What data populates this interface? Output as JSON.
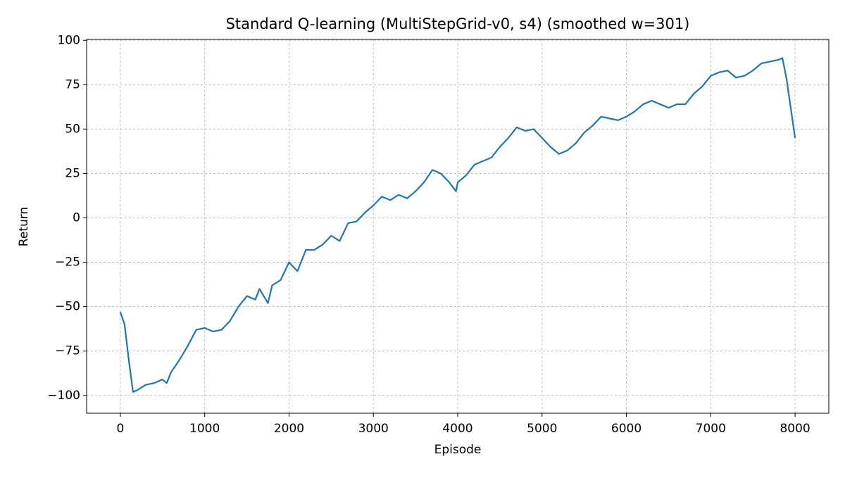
{
  "chart_data": {
    "type": "line",
    "title": "Standard Q-learning (MultiStepGrid-v0, s4) (smoothed w=301)",
    "x_label": "Episode",
    "y_label": "Return",
    "x": [
      0,
      50,
      100,
      150,
      200,
      300,
      400,
      500,
      550,
      600,
      700,
      800,
      900,
      1000,
      1100,
      1200,
      1300,
      1400,
      1500,
      1600,
      1650,
      1750,
      1800,
      1900,
      2000,
      2100,
      2200,
      2300,
      2400,
      2500,
      2600,
      2700,
      2800,
      2900,
      3000,
      3100,
      3200,
      3300,
      3400,
      3500,
      3600,
      3700,
      3800,
      3900,
      3980,
      4000,
      4100,
      4200,
      4300,
      4400,
      4500,
      4600,
      4700,
      4800,
      4900,
      5000,
      5100,
      5200,
      5300,
      5400,
      5500,
      5600,
      5700,
      5800,
      5900,
      6000,
      6100,
      6200,
      6300,
      6400,
      6500,
      6600,
      6700,
      6800,
      6900,
      7000,
      7100,
      7200,
      7300,
      7400,
      7500,
      7600,
      7700,
      7800,
      7850,
      7900,
      8000
    ],
    "series": [
      {
        "name": "Return",
        "color": "#1f77b4",
        "values": [
          -53,
          -60,
          -80,
          -98,
          -97,
          -94,
          -93,
          -91,
          -93,
          -87,
          -80,
          -72,
          -63,
          -62,
          -64,
          -63,
          -58,
          -50,
          -44,
          -46,
          -40,
          -48,
          -38,
          -35,
          -25,
          -30,
          -18,
          -18,
          -15,
          -10,
          -13,
          -3,
          -2,
          3,
          7,
          12,
          10,
          13,
          11,
          15,
          20,
          27,
          25,
          20,
          15,
          20,
          24,
          30,
          32,
          34,
          40,
          45,
          51,
          49,
          50,
          45,
          40,
          36,
          38,
          42,
          48,
          52,
          57,
          56,
          55,
          57,
          60,
          64,
          66,
          64,
          62,
          64,
          64,
          70,
          74,
          80,
          82,
          83,
          79,
          80,
          83,
          87,
          88,
          89,
          90,
          78,
          45
        ]
      }
    ],
    "xlim": [
      -400,
      8400
    ],
    "ylim": [
      -110,
      100.5
    ],
    "xticks": [
      0,
      1000,
      2000,
      3000,
      4000,
      5000,
      6000,
      7000,
      8000
    ],
    "yticks": [
      {
        "value": -100,
        "label": "−100"
      },
      {
        "value": -75,
        "label": "−75"
      },
      {
        "value": -50,
        "label": "−50"
      },
      {
        "value": -25,
        "label": "−25"
      },
      0,
      25,
      50,
      75,
      100
    ],
    "grid": true
  }
}
